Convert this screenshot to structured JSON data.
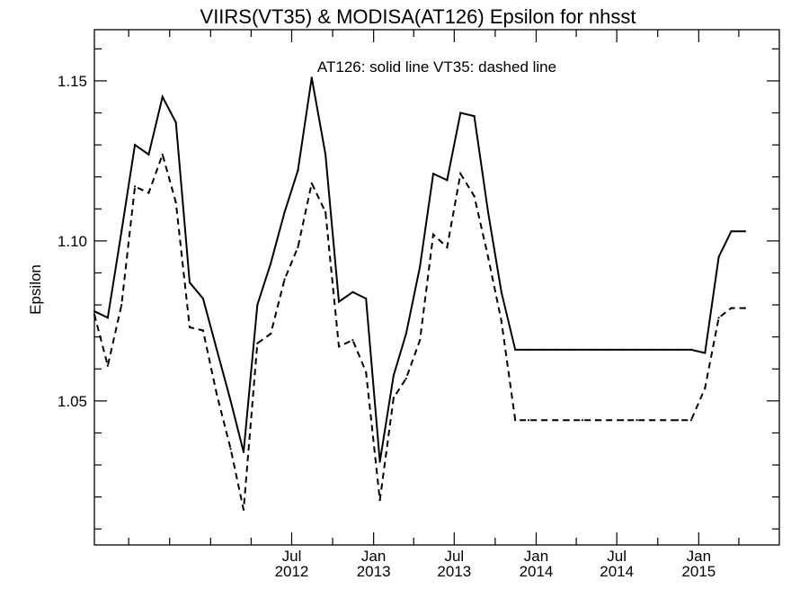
{
  "chart_data": {
    "type": "line",
    "title": "VIIRS(VT35) & MODISA(AT126)  Epsilon for nhsst",
    "annotation": "AT126: solid line   VT35: dashed line",
    "xlabel": "",
    "ylabel": "Epsilon",
    "xlim": [
      "2011-04-15",
      "2015-07-01"
    ],
    "ylim": [
      1.005,
      1.166
    ],
    "grid": false,
    "x_tick_labels": [
      {
        "date": "2012-07-01",
        "month": "Jul",
        "year": "2012"
      },
      {
        "date": "2013-01-01",
        "month": "Jan",
        "year": "2013"
      },
      {
        "date": "2013-07-01",
        "month": "Jul",
        "year": "2013"
      },
      {
        "date": "2014-01-01",
        "month": "Jan",
        "year": "2014"
      },
      {
        "date": "2014-07-01",
        "month": "Jul",
        "year": "2014"
      },
      {
        "date": "2015-01-01",
        "month": "Jan",
        "year": "2015"
      }
    ],
    "x_minor_ticks": [
      "2011-07-01",
      "2011-10-01",
      "2012-01-01",
      "2012-04-01",
      "2012-10-01",
      "2013-04-01",
      "2013-10-01",
      "2014-04-01",
      "2014-10-01",
      "2015-04-01"
    ],
    "y_ticks": [
      1.05,
      1.1,
      1.15
    ],
    "y_tick_labels": [
      "1.05",
      "1.10",
      "1.15"
    ],
    "y_minor_ticks": [
      1.01,
      1.02,
      1.03,
      1.04,
      1.06,
      1.07,
      1.08,
      1.09,
      1.11,
      1.12,
      1.13,
      1.14,
      1.16
    ],
    "series": [
      {
        "style": "solid",
        "color": "#000000",
        "x": [
          "2011-04-15",
          "2011-05-15",
          "2011-06-15",
          "2011-07-15",
          "2011-08-15",
          "2011-09-15",
          "2011-10-15",
          "2011-11-15",
          "2011-12-15",
          "2012-01-15",
          "2012-02-15",
          "2012-03-15",
          "2012-04-15",
          "2012-05-15",
          "2012-06-15",
          "2012-07-15",
          "2012-08-15",
          "2012-09-15",
          "2012-10-15",
          "2012-11-15",
          "2012-12-15",
          "2013-01-15",
          "2013-02-15",
          "2013-03-15",
          "2013-04-15",
          "2013-05-15",
          "2013-06-15",
          "2013-07-15",
          "2013-08-15",
          "2013-09-15",
          "2013-10-15",
          "2013-11-15",
          "2013-12-15",
          "2014-01-15",
          "2014-02-15",
          "2014-03-15",
          "2014-04-15",
          "2014-05-15",
          "2014-06-15",
          "2014-07-15",
          "2014-08-15",
          "2014-09-15",
          "2014-10-15",
          "2014-11-15",
          "2014-12-15",
          "2015-01-15",
          "2015-02-15",
          "2015-03-15",
          "2015-04-15"
        ],
        "values": [
          1.078,
          1.076,
          1.103,
          1.13,
          1.127,
          1.145,
          1.137,
          1.087,
          1.082,
          1.066,
          1.05,
          1.034,
          1.08,
          1.093,
          1.109,
          1.122,
          1.151,
          1.127,
          1.081,
          1.084,
          1.082,
          1.031,
          1.058,
          1.071,
          1.092,
          1.121,
          1.119,
          1.14,
          1.139,
          1.109,
          1.084,
          1.066,
          1.066,
          1.066,
          1.066,
          1.066,
          1.066,
          1.066,
          1.066,
          1.066,
          1.066,
          1.066,
          1.066,
          1.066,
          1.066,
          1.065,
          1.095,
          1.103,
          1.103
        ]
      },
      {
        "style": "dashed",
        "color": "#000000",
        "x": [
          "2011-04-15",
          "2011-05-15",
          "2011-06-15",
          "2011-07-15",
          "2011-08-15",
          "2011-09-15",
          "2011-10-15",
          "2011-11-15",
          "2011-12-15",
          "2012-01-15",
          "2012-02-15",
          "2012-03-15",
          "2012-04-15",
          "2012-05-15",
          "2012-06-15",
          "2012-07-15",
          "2012-08-15",
          "2012-09-15",
          "2012-10-15",
          "2012-11-15",
          "2012-12-15",
          "2013-01-15",
          "2013-02-15",
          "2013-03-15",
          "2013-04-15",
          "2013-05-15",
          "2013-06-15",
          "2013-07-15",
          "2013-08-15",
          "2013-09-15",
          "2013-10-15",
          "2013-11-15",
          "2013-12-15",
          "2014-01-15",
          "2014-02-15",
          "2014-03-15",
          "2014-04-15",
          "2014-05-15",
          "2014-06-15",
          "2014-07-15",
          "2014-08-15",
          "2014-09-15",
          "2014-10-15",
          "2014-11-15",
          "2014-12-15",
          "2015-01-15",
          "2015-02-15",
          "2015-03-15",
          "2015-04-15"
        ],
        "values": [
          1.077,
          1.061,
          1.08,
          1.117,
          1.115,
          1.127,
          1.112,
          1.073,
          1.072,
          1.052,
          1.035,
          1.016,
          1.068,
          1.071,
          1.088,
          1.098,
          1.118,
          1.109,
          1.067,
          1.069,
          1.059,
          1.019,
          1.051,
          1.057,
          1.069,
          1.102,
          1.098,
          1.121,
          1.114,
          1.095,
          1.075,
          1.044,
          1.044,
          1.044,
          1.044,
          1.044,
          1.044,
          1.044,
          1.044,
          1.044,
          1.044,
          1.044,
          1.044,
          1.044,
          1.044,
          1.054,
          1.076,
          1.079,
          1.079
        ]
      }
    ]
  }
}
